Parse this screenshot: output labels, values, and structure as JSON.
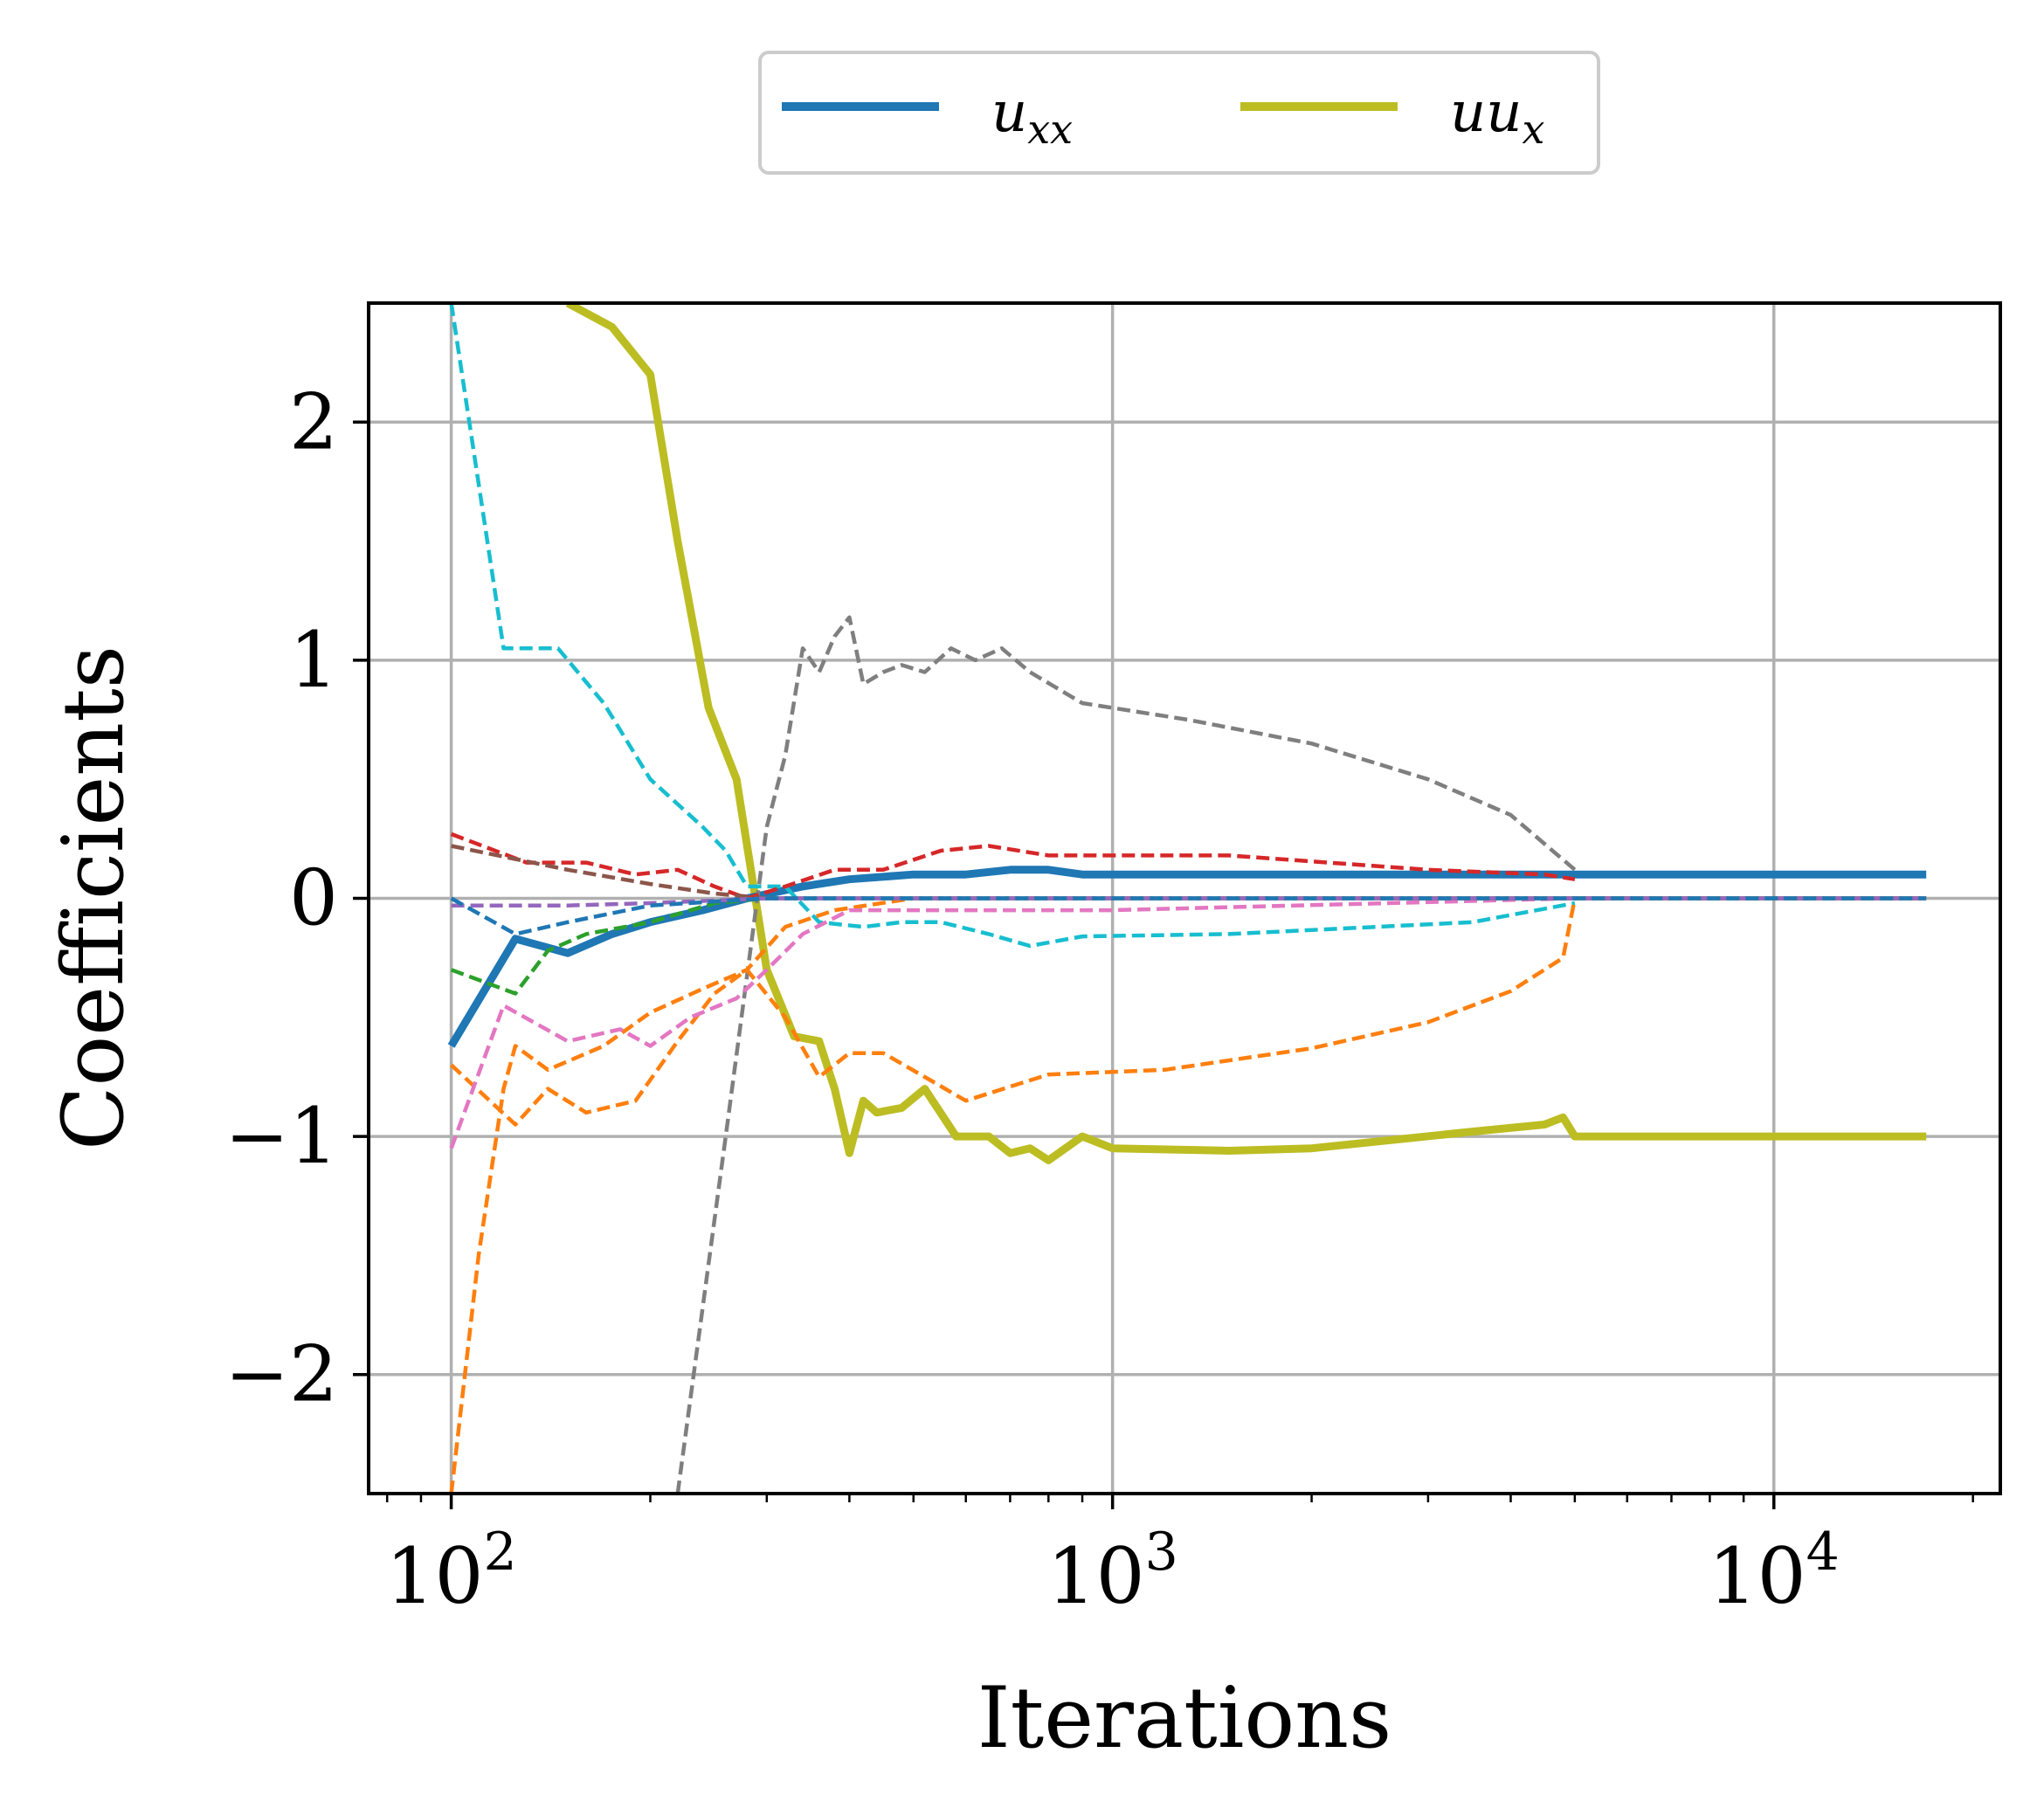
{
  "chart_data": {
    "type": "line",
    "xlabel": "Iterations",
    "ylabel": "Coefficients",
    "xscale": "log",
    "xlim": [
      75,
      22000
    ],
    "ylim": [
      -2.5,
      2.5
    ],
    "grid": true,
    "x_ticks": [
      {
        "base": "10",
        "exp": "2",
        "value": 100
      },
      {
        "base": "10",
        "exp": "3",
        "value": 1000
      },
      {
        "base": "10",
        "exp": "4",
        "value": 10000
      }
    ],
    "y_ticks": [
      {
        "label": "2",
        "value": 2
      },
      {
        "label": "1",
        "value": 1
      },
      {
        "label": "0",
        "value": 0
      },
      {
        "label": "−1",
        "value": -1
      },
      {
        "label": "−2",
        "value": -2
      }
    ],
    "legend": {
      "placement": "top-center",
      "entries": [
        {
          "base": "u",
          "sub": "xx",
          "color": "#1f77b4"
        },
        {
          "base": "uu",
          "sub": "x",
          "color": "#bcbd22"
        }
      ]
    },
    "series": [
      {
        "color": "#bcbd22",
        "style": "solid",
        "width": "thick",
        "points": [
          [
            150,
            2.5
          ],
          [
            175,
            2.4
          ],
          [
            200,
            2.2
          ],
          [
            220,
            1.5
          ],
          [
            245,
            0.8
          ],
          [
            270,
            0.5
          ],
          [
            300,
            -0.3
          ],
          [
            330,
            -0.58
          ],
          [
            360,
            -0.6
          ],
          [
            380,
            -0.8
          ],
          [
            400,
            -1.07
          ],
          [
            420,
            -0.85
          ],
          [
            440,
            -0.9
          ],
          [
            480,
            -0.88
          ],
          [
            520,
            -0.8
          ],
          [
            580,
            -1.0
          ],
          [
            650,
            -1.0
          ],
          [
            700,
            -1.07
          ],
          [
            750,
            -1.05
          ],
          [
            800,
            -1.1
          ],
          [
            900,
            -1.0
          ],
          [
            1000,
            -1.05
          ],
          [
            1500,
            -1.06
          ],
          [
            2000,
            -1.05
          ],
          [
            3500,
            -0.98
          ],
          [
            4500,
            -0.95
          ],
          [
            4800,
            -0.92
          ],
          [
            5000,
            -1.0
          ],
          [
            5500,
            -1.0
          ],
          [
            17000,
            -1.0
          ]
        ]
      },
      {
        "color": "#1f77b4",
        "style": "solid",
        "width": "thick",
        "points": [
          [
            100,
            -0.62
          ],
          [
            125,
            -0.17
          ],
          [
            150,
            -0.23
          ],
          [
            175,
            -0.15
          ],
          [
            200,
            -0.1
          ],
          [
            240,
            -0.05
          ],
          [
            280,
            0.0
          ],
          [
            340,
            0.05
          ],
          [
            400,
            0.08
          ],
          [
            500,
            0.1
          ],
          [
            600,
            0.1
          ],
          [
            700,
            0.12
          ],
          [
            800,
            0.12
          ],
          [
            900,
            0.1
          ],
          [
            1500,
            0.1
          ],
          [
            4000,
            0.1
          ],
          [
            17000,
            0.1
          ]
        ]
      },
      {
        "color": "#17becf",
        "style": "dashed",
        "points": [
          [
            100,
            2.5
          ],
          [
            120,
            1.05
          ],
          [
            145,
            1.05
          ],
          [
            170,
            0.82
          ],
          [
            200,
            0.5
          ],
          [
            240,
            0.3
          ],
          [
            260,
            0.2
          ],
          [
            280,
            0.05
          ],
          [
            320,
            0.05
          ],
          [
            360,
            -0.1
          ],
          [
            420,
            -0.12
          ],
          [
            480,
            -0.1
          ],
          [
            550,
            -0.1
          ],
          [
            650,
            -0.15
          ],
          [
            750,
            -0.2
          ],
          [
            900,
            -0.16
          ],
          [
            1500,
            -0.15
          ],
          [
            3500,
            -0.1
          ],
          [
            5000,
            -0.02
          ]
        ]
      },
      {
        "color": "#7f7f7f",
        "style": "dashed",
        "points": [
          [
            220,
            -2.5
          ],
          [
            260,
            -1.0
          ],
          [
            300,
            0.3
          ],
          [
            320,
            0.6
          ],
          [
            340,
            1.05
          ],
          [
            360,
            0.95
          ],
          [
            380,
            1.1
          ],
          [
            400,
            1.18
          ],
          [
            420,
            0.9
          ],
          [
            450,
            0.95
          ],
          [
            480,
            0.98
          ],
          [
            520,
            0.95
          ],
          [
            570,
            1.05
          ],
          [
            620,
            1.0
          ],
          [
            680,
            1.05
          ],
          [
            750,
            0.95
          ],
          [
            900,
            0.82
          ],
          [
            1300,
            0.75
          ],
          [
            2000,
            0.65
          ],
          [
            3000,
            0.5
          ],
          [
            4000,
            0.35
          ],
          [
            5000,
            0.12
          ]
        ]
      },
      {
        "color": "#ff7f0e",
        "style": "dashed",
        "points": [
          [
            100,
            -2.5
          ],
          [
            110,
            -1.5
          ],
          [
            120,
            -0.8
          ],
          [
            125,
            -0.62
          ],
          [
            140,
            -0.72
          ],
          [
            170,
            -0.62
          ],
          [
            200,
            -0.48
          ],
          [
            240,
            -0.38
          ],
          [
            280,
            -0.3
          ],
          [
            320,
            -0.12
          ],
          [
            380,
            -0.05
          ],
          [
            500,
            0.0
          ],
          [
            700,
            0.0
          ],
          [
            900,
            0.0
          ],
          [
            1500,
            0.0
          ],
          [
            5000,
            0.0
          ],
          [
            17000,
            0.0
          ]
        ]
      },
      {
        "color": "#ff7f0e",
        "style": "dashed",
        "points": [
          [
            100,
            -0.7
          ],
          [
            125,
            -0.95
          ],
          [
            140,
            -0.8
          ],
          [
            160,
            -0.9
          ],
          [
            190,
            -0.85
          ],
          [
            220,
            -0.6
          ],
          [
            250,
            -0.4
          ],
          [
            280,
            -0.3
          ],
          [
            320,
            -0.5
          ],
          [
            360,
            -0.75
          ],
          [
            400,
            -0.65
          ],
          [
            450,
            -0.65
          ],
          [
            520,
            -0.75
          ],
          [
            600,
            -0.85
          ],
          [
            800,
            -0.74
          ],
          [
            1200,
            -0.72
          ],
          [
            2000,
            -0.63
          ],
          [
            3000,
            -0.52
          ],
          [
            4000,
            -0.39
          ],
          [
            4800,
            -0.25
          ],
          [
            5000,
            0.0
          ],
          [
            17000,
            0.0
          ]
        ]
      },
      {
        "color": "#e377c2",
        "style": "dashed",
        "points": [
          [
            100,
            -1.05
          ],
          [
            120,
            -0.45
          ],
          [
            150,
            -0.6
          ],
          [
            180,
            -0.55
          ],
          [
            200,
            -0.62
          ],
          [
            230,
            -0.5
          ],
          [
            270,
            -0.42
          ],
          [
            300,
            -0.3
          ],
          [
            340,
            -0.15
          ],
          [
            400,
            -0.05
          ],
          [
            500,
            -0.05
          ],
          [
            700,
            -0.05
          ],
          [
            1000,
            -0.05
          ],
          [
            5000,
            0.0
          ]
        ]
      },
      {
        "color": "#d62728",
        "style": "dashed",
        "points": [
          [
            100,
            0.27
          ],
          [
            130,
            0.15
          ],
          [
            160,
            0.15
          ],
          [
            190,
            0.1
          ],
          [
            220,
            0.12
          ],
          [
            250,
            0.05
          ],
          [
            280,
            0.0
          ],
          [
            320,
            0.05
          ],
          [
            380,
            0.12
          ],
          [
            450,
            0.12
          ],
          [
            550,
            0.2
          ],
          [
            650,
            0.22
          ],
          [
            800,
            0.18
          ],
          [
            1500,
            0.18
          ],
          [
            3000,
            0.12
          ],
          [
            4500,
            0.1
          ],
          [
            5000,
            0.08
          ]
        ]
      },
      {
        "color": "#8c564b",
        "style": "dashed",
        "points": [
          [
            100,
            0.22
          ],
          [
            150,
            0.12
          ],
          [
            200,
            0.06
          ],
          [
            250,
            0.02
          ],
          [
            300,
            0.0
          ],
          [
            17000,
            0.0
          ]
        ]
      },
      {
        "color": "#2ca02c",
        "style": "dashed",
        "points": [
          [
            100,
            -0.3
          ],
          [
            125,
            -0.4
          ],
          [
            140,
            -0.22
          ],
          [
            160,
            -0.15
          ],
          [
            200,
            -0.1
          ],
          [
            250,
            -0.02
          ],
          [
            300,
            0.0
          ],
          [
            17000,
            0.0
          ]
        ]
      },
      {
        "color": "#9467bd",
        "style": "dashed",
        "points": [
          [
            100,
            -0.03
          ],
          [
            150,
            -0.03
          ],
          [
            200,
            -0.02
          ],
          [
            300,
            0.0
          ],
          [
            17000,
            0.0
          ]
        ]
      },
      {
        "color": "#1f77b4",
        "style": "dashed",
        "points": [
          [
            100,
            0.0
          ],
          [
            125,
            -0.15
          ],
          [
            150,
            -0.1
          ],
          [
            200,
            -0.03
          ],
          [
            300,
            0.0
          ],
          [
            17000,
            0.0
          ]
        ]
      }
    ]
  }
}
